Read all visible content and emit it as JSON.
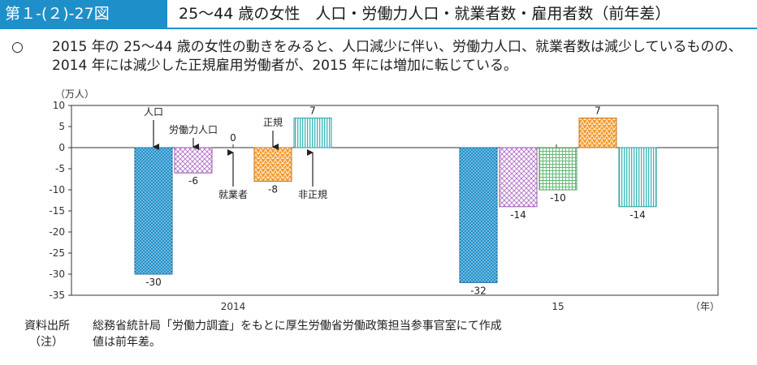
{
  "header": {
    "figure_label": "第１-(２)-27図",
    "title": "25～44 歳の女性　人口・労働力人口・就業者数・雇用者数（前年差）"
  },
  "summary": {
    "bullet": "○",
    "text": "2015 年の 25～44 歳の女性の動きをみると、人口減少に伴い、労働力人口、就業者数は減少しているものの、2014 年には減少した正規雇用労働者が、2015 年には増加に転じている。"
  },
  "chart_data": {
    "type": "bar",
    "unit_label": "（万人）",
    "x_axis_end_label": "（年）",
    "ylim": [
      -35,
      10
    ],
    "y_ticks": [
      10,
      5,
      0,
      -5,
      -10,
      -15,
      -20,
      -25,
      -30,
      -35
    ],
    "categories": [
      "2014",
      "15"
    ],
    "series": [
      {
        "name": "人口",
        "values": [
          -30,
          -32
        ],
        "labels": [
          "-30",
          "-32"
        ],
        "color": "#1f8fc9"
      },
      {
        "name": "労働力人口",
        "values": [
          -6,
          -14
        ],
        "labels": [
          "-6",
          "-14"
        ],
        "color": "#c78ad6"
      },
      {
        "name": "就業者",
        "values": [
          0,
          -10
        ],
        "labels": [
          "0",
          "-10"
        ],
        "color": "#8ccf9a"
      },
      {
        "name": "正規",
        "values": [
          -8,
          7
        ],
        "labels": [
          "-8",
          "7"
        ],
        "color": "#f39a2b"
      },
      {
        "name": "非正規",
        "values": [
          7,
          -14
        ],
        "labels": [
          "7",
          "-14"
        ],
        "color": "#3bb8b9"
      }
    ],
    "grid": false,
    "annotations": [
      {
        "text": "人口",
        "series": 0,
        "category": 0,
        "position": "above"
      },
      {
        "text": "労働力人口",
        "series": 1,
        "category": 0,
        "position": "above"
      },
      {
        "text": "就業者",
        "series": 2,
        "category": 0,
        "position": "below"
      },
      {
        "text": "正規",
        "series": 3,
        "category": 0,
        "position": "above"
      },
      {
        "text": "非正規",
        "series": 4,
        "category": 0,
        "position": "below"
      }
    ]
  },
  "footer": {
    "source_label": "資料出所",
    "source_text": "総務省統計局「労働力調査」をもとに厚生労働省労働政策担当参事官室にて作成",
    "note_label": "（注）",
    "note_text": "値は前年差。"
  }
}
